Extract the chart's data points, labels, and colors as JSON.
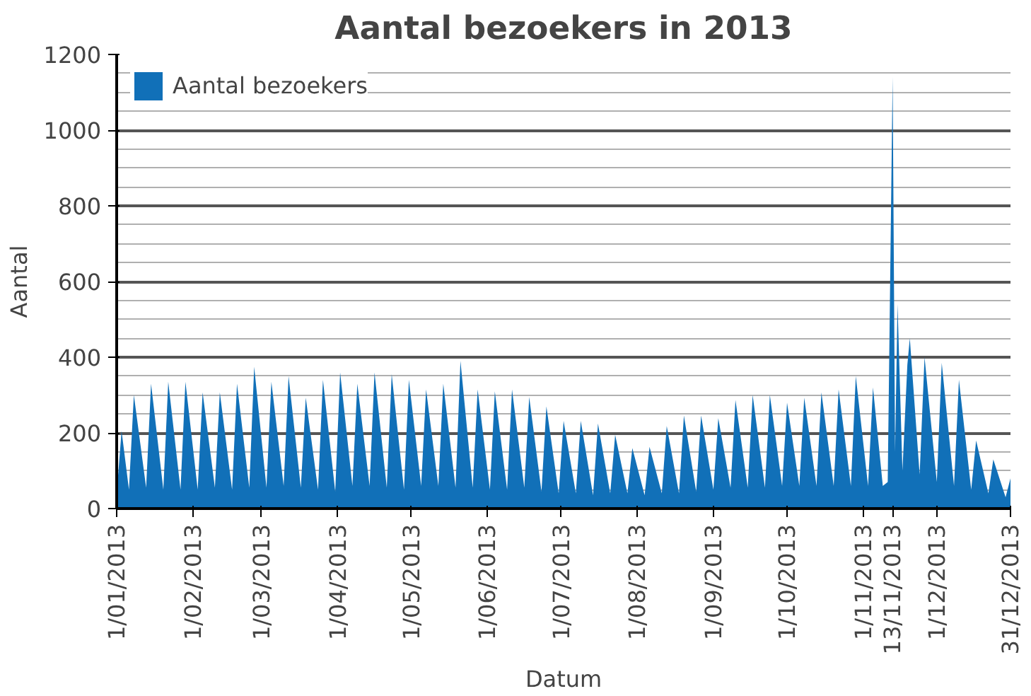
{
  "chart_data": {
    "type": "area",
    "title": "Aantal bezoekers in 2013",
    "xlabel": "Datum",
    "ylabel": "Aantal",
    "x": [
      "2013-01-01",
      "2013-01-03",
      "2013-01-06",
      "2013-01-08",
      "2013-01-13",
      "2013-01-15",
      "2013-01-20",
      "2013-01-22",
      "2013-01-27",
      "2013-01-29",
      "2013-02-03",
      "2013-02-05",
      "2013-02-10",
      "2013-02-12",
      "2013-02-17",
      "2013-02-19",
      "2013-02-24",
      "2013-02-26",
      "2013-03-03",
      "2013-03-05",
      "2013-03-10",
      "2013-03-12",
      "2013-03-17",
      "2013-03-19",
      "2013-03-24",
      "2013-03-26",
      "2013-03-31",
      "2013-04-02",
      "2013-04-07",
      "2013-04-09",
      "2013-04-14",
      "2013-04-16",
      "2013-04-21",
      "2013-04-23",
      "2013-04-28",
      "2013-04-30",
      "2013-05-05",
      "2013-05-07",
      "2013-05-12",
      "2013-05-14",
      "2013-05-19",
      "2013-05-21",
      "2013-05-26",
      "2013-05-28",
      "2013-06-02",
      "2013-06-04",
      "2013-06-09",
      "2013-06-11",
      "2013-06-16",
      "2013-06-18",
      "2013-06-23",
      "2013-06-25",
      "2013-06-30",
      "2013-07-02",
      "2013-07-07",
      "2013-07-09",
      "2013-07-14",
      "2013-07-16",
      "2013-07-21",
      "2013-07-23",
      "2013-07-28",
      "2013-07-30",
      "2013-08-04",
      "2013-08-06",
      "2013-08-11",
      "2013-08-13",
      "2013-08-18",
      "2013-08-20",
      "2013-08-25",
      "2013-08-27",
      "2013-09-01",
      "2013-09-03",
      "2013-09-08",
      "2013-09-10",
      "2013-09-15",
      "2013-09-17",
      "2013-09-22",
      "2013-09-24",
      "2013-09-29",
      "2013-10-01",
      "2013-10-06",
      "2013-10-08",
      "2013-10-13",
      "2013-10-15",
      "2013-10-20",
      "2013-10-22",
      "2013-10-27",
      "2013-10-29",
      "2013-11-03",
      "2013-11-05",
      "2013-11-09",
      "2013-11-11",
      "2013-11-13",
      "2013-11-14",
      "2013-11-15",
      "2013-11-17",
      "2013-11-19",
      "2013-11-20",
      "2013-11-24",
      "2013-11-26",
      "2013-12-01",
      "2013-12-03",
      "2013-12-08",
      "2013-12-10",
      "2013-12-15",
      "2013-12-17",
      "2013-12-22",
      "2013-12-24",
      "2013-12-29",
      "2013-12-31"
    ],
    "series": [
      {
        "name": "Aantal bezoekers",
        "color": "#1170b8",
        "values": [
          40,
          205,
          50,
          300,
          55,
          330,
          50,
          335,
          50,
          335,
          50,
          307,
          55,
          307,
          50,
          330,
          55,
          375,
          55,
          335,
          60,
          350,
          55,
          293,
          50,
          340,
          45,
          360,
          60,
          330,
          60,
          360,
          55,
          355,
          50,
          340,
          60,
          315,
          60,
          330,
          55,
          390,
          55,
          315,
          50,
          310,
          50,
          315,
          55,
          295,
          45,
          270,
          40,
          232,
          40,
          232,
          35,
          225,
          40,
          195,
          40,
          160,
          35,
          163,
          40,
          218,
          40,
          246,
          45,
          246,
          50,
          239,
          55,
          287,
          55,
          300,
          55,
          300,
          60,
          280,
          60,
          293,
          60,
          307,
          60,
          315,
          60,
          350,
          60,
          320,
          60,
          70,
          1140,
          150,
          540,
          100,
          380,
          450,
          90,
          400,
          70,
          385,
          60,
          340,
          50,
          180,
          40,
          130,
          30,
          80
        ]
      }
    ],
    "xlim": [
      "2013-01-01",
      "2013-12-31"
    ],
    "xticks": [
      {
        "value": "2013-01-01",
        "label": "1/01/2013"
      },
      {
        "value": "2013-02-01",
        "label": "1/02/2013"
      },
      {
        "value": "2013-03-01",
        "label": "1/03/2013"
      },
      {
        "value": "2013-04-01",
        "label": "1/04/2013"
      },
      {
        "value": "2013-05-01",
        "label": "1/05/2013"
      },
      {
        "value": "2013-06-01",
        "label": "1/06/2013"
      },
      {
        "value": "2013-07-01",
        "label": "1/07/2013"
      },
      {
        "value": "2013-08-01",
        "label": "1/08/2013"
      },
      {
        "value": "2013-09-01",
        "label": "1/09/2013"
      },
      {
        "value": "2013-10-01",
        "label": "1/10/2013"
      },
      {
        "value": "2013-11-01",
        "label": "1/11/2013"
      },
      {
        "value": "2013-11-13",
        "label": "13/11/2013"
      },
      {
        "value": "2013-12-01",
        "label": "1/12/2013"
      },
      {
        "value": "2013-12-31",
        "label": "31/12/2013"
      }
    ],
    "ylim": [
      0,
      1200
    ],
    "yticks": [
      0,
      200,
      400,
      600,
      800,
      1000,
      1200
    ],
    "grid": "y",
    "legend": "top left"
  }
}
